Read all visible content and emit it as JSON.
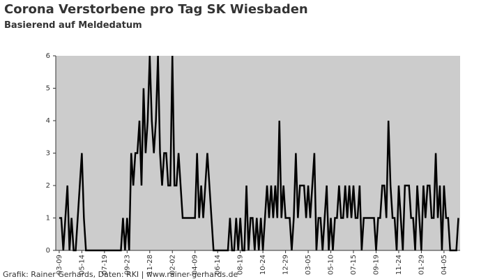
{
  "chart_data": {
    "type": "line",
    "title": "Corona Verstorbene pro Tag SK Wiesbaden",
    "subtitle": "Basierend auf Meldedatum",
    "source": "Grafik: Rainer Gerhards, Daten: RKI | www.rainer-gerhards.de",
    "x": [
      0,
      6,
      12,
      18,
      24,
      30,
      36,
      42,
      48,
      54,
      60,
      66,
      72,
      78,
      84,
      90,
      96,
      102,
      108,
      114,
      120,
      126,
      132,
      138,
      144,
      150,
      156,
      162,
      168,
      174,
      180,
      186,
      192,
      198,
      204,
      210,
      216,
      222,
      228,
      234,
      240,
      246,
      252,
      258,
      264,
      270,
      276,
      282,
      288,
      294,
      300,
      306,
      312,
      318,
      324,
      330,
      336,
      342,
      348,
      354,
      360,
      366,
      372,
      378,
      384,
      390,
      396,
      402,
      408,
      414,
      420,
      426,
      432,
      438,
      444,
      450,
      456,
      462,
      468,
      474,
      480,
      486,
      492,
      498,
      504,
      510,
      516,
      522,
      528,
      534,
      540,
      546,
      552,
      558,
      564,
      570,
      576,
      582,
      588,
      594,
      600,
      606,
      612,
      618,
      624,
      630,
      636,
      642,
      648,
      654,
      660,
      666,
      672,
      678,
      684,
      690,
      696,
      702,
      708,
      714,
      720,
      726,
      732,
      738,
      744,
      750,
      756,
      762,
      768,
      774,
      780,
      786,
      792,
      798,
      804,
      810,
      816,
      822,
      828,
      834,
      840,
      846,
      852,
      858,
      864,
      870,
      876,
      882,
      888,
      894,
      900,
      906,
      912,
      918,
      924,
      930,
      936,
      942,
      948,
      954,
      960,
      966,
      972,
      978,
      984,
      990,
      996,
      1002,
      1008,
      1014,
      1020,
      1026,
      1032,
      1038,
      1044,
      1050,
      1056,
      1062,
      1068,
      1074,
      1080,
      1086,
      1092,
      1098,
      1104,
      1110,
      1116,
      1122,
      1128,
      1134,
      1140,
      1146,
      1152,
      1158,
      1164
    ],
    "series": [
      {
        "name": "Verstorbene",
        "color": "#000000",
        "values": [
          1,
          1,
          0,
          1,
          2,
          0,
          1,
          0,
          0,
          1,
          2,
          3,
          1,
          0,
          0,
          0,
          0,
          0,
          0,
          0,
          0,
          0,
          0,
          0,
          0,
          0,
          0,
          0,
          0,
          0,
          0,
          1,
          0,
          1,
          0,
          3,
          2,
          3,
          3,
          4,
          2,
          5,
          3,
          4,
          6,
          4,
          3,
          4,
          6,
          3,
          2,
          3,
          3,
          2,
          2,
          6,
          2,
          2,
          3,
          2,
          1,
          1,
          1,
          1,
          1,
          1,
          1,
          3,
          1,
          2,
          1,
          2,
          3,
          2,
          1,
          0,
          0,
          0,
          0,
          0,
          0,
          0,
          0,
          1,
          0,
          0,
          1,
          0,
          1,
          0,
          0,
          2,
          0,
          1,
          1,
          0,
          1,
          0,
          1,
          0,
          1,
          2,
          1,
          2,
          1,
          2,
          1,
          4,
          1,
          2,
          1,
          1,
          1,
          0,
          1,
          3,
          1,
          2,
          2,
          2,
          1,
          2,
          1,
          2,
          3,
          0,
          1,
          1,
          0,
          1,
          2,
          0,
          1,
          0,
          1,
          1,
          2,
          1,
          1,
          2,
          1,
          2,
          1,
          2,
          1,
          1,
          2,
          0,
          1,
          1,
          1,
          1,
          1,
          1,
          0,
          1,
          1,
          2,
          2,
          1,
          4,
          2,
          1,
          1,
          0,
          2,
          1,
          0,
          2,
          2,
          2,
          1,
          1,
          0,
          2,
          1,
          0,
          2,
          1,
          2,
          2,
          1,
          1,
          3,
          1,
          2,
          0,
          2,
          1,
          1,
          0,
          0,
          0,
          0,
          1
        ]
      }
    ],
    "xlim": [
      -10,
      1169
    ],
    "xticks": [
      {
        "value": 0,
        "label": "03-09"
      },
      {
        "value": 66,
        "label": "05-14"
      },
      {
        "value": 132,
        "label": "07-19"
      },
      {
        "value": 198,
        "label": "09-23"
      },
      {
        "value": 264,
        "label": "11-28"
      },
      {
        "value": 330,
        "label": "02-02"
      },
      {
        "value": 396,
        "label": "04-09"
      },
      {
        "value": 462,
        "label": "06-14"
      },
      {
        "value": 528,
        "label": "08-19"
      },
      {
        "value": 594,
        "label": "10-24"
      },
      {
        "value": 660,
        "label": "12-29"
      },
      {
        "value": 726,
        "label": "03-05"
      },
      {
        "value": 792,
        "label": "05-10"
      },
      {
        "value": 858,
        "label": "07-15"
      },
      {
        "value": 924,
        "label": "09-19"
      },
      {
        "value": 990,
        "label": "11-24"
      },
      {
        "value": 1056,
        "label": "01-29"
      },
      {
        "value": 1122,
        "label": "04-05"
      }
    ],
    "ylim": [
      0,
      6
    ],
    "yticks": [
      0,
      1,
      2,
      3,
      4,
      5,
      6
    ],
    "plot_background": "#cccccc"
  }
}
